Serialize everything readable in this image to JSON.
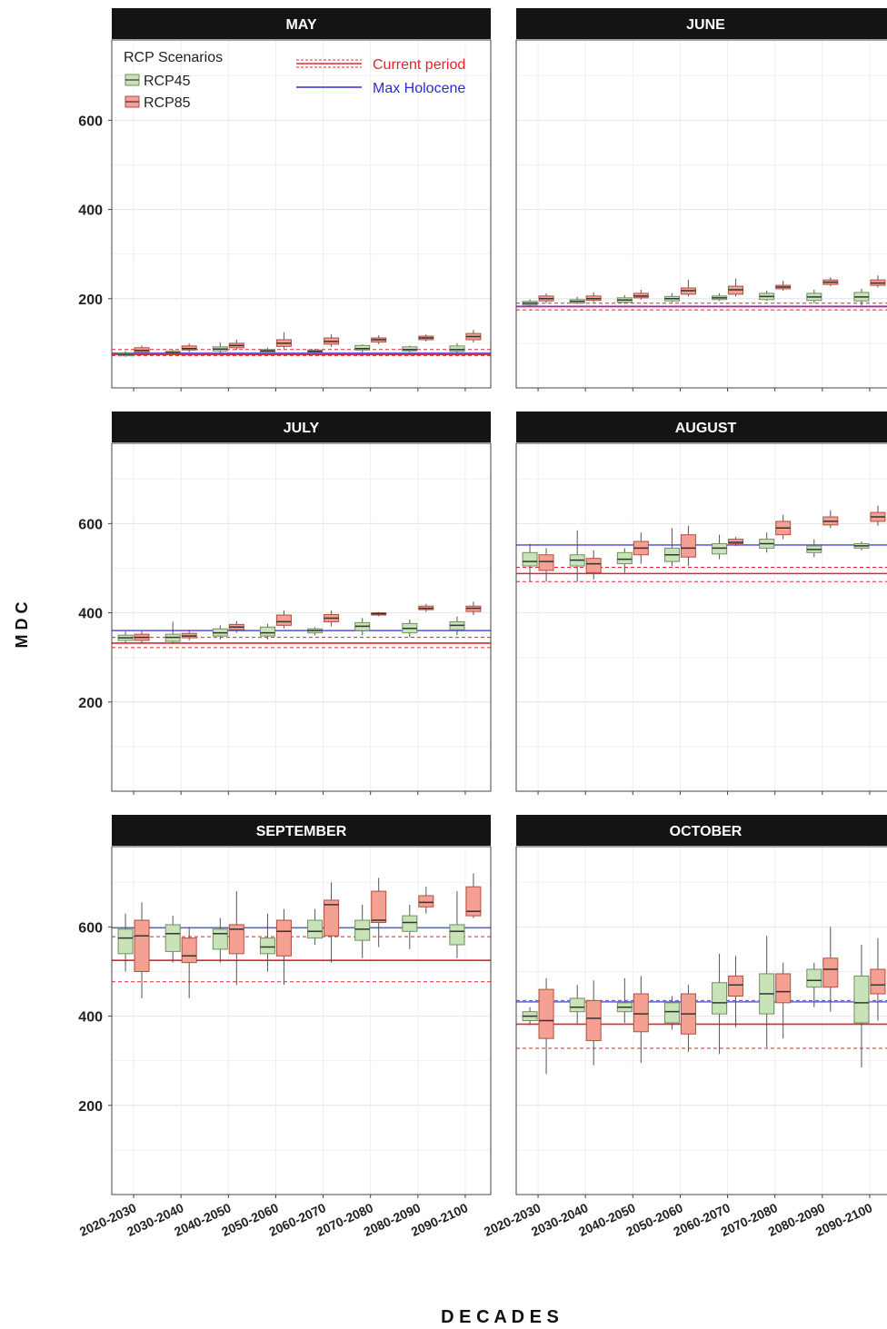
{
  "chart_data": {
    "type": "box",
    "ylabel": "M D C",
    "xlabel": "D E C A D E S",
    "ylim": [
      0,
      780
    ],
    "yticks": [
      200,
      400,
      600
    ],
    "categories": [
      "2020-2030",
      "2030-2040",
      "2040-2050",
      "2050-2060",
      "2060-2070",
      "2070-2080",
      "2080-2090",
      "2090-2100"
    ],
    "legend": {
      "title": "RCP Scenarios",
      "scenarios": [
        {
          "name": "RCP45",
          "color": "#c9e3b8",
          "stroke": "#6f8f60"
        },
        {
          "name": "RCP85",
          "color": "#f4a093",
          "stroke": "#b05040"
        }
      ],
      "lines": [
        {
          "name": "Current period",
          "color": "#e8232b"
        },
        {
          "name": "Max Holocene",
          "color": "#2b2bd6"
        }
      ]
    },
    "panels": [
      {
        "title": "MAY",
        "current_period": {
          "mean": 75,
          "lower": 72,
          "upper": 86
        },
        "max_holocene": 78,
        "rcp45": [
          [
            70,
            72,
            75,
            78,
            82
          ],
          [
            74,
            77,
            79,
            82,
            86
          ],
          [
            78,
            83,
            87,
            92,
            102
          ],
          [
            78,
            80,
            83,
            86,
            90
          ],
          [
            78,
            80,
            82,
            85,
            88
          ],
          [
            80,
            85,
            88,
            95,
            98
          ],
          [
            80,
            83,
            86,
            92,
            95
          ],
          [
            78,
            82,
            86,
            94,
            100
          ]
        ],
        "rcp85": [
          [
            76,
            80,
            84,
            90,
            95
          ],
          [
            80,
            85,
            88,
            94,
            100
          ],
          [
            85,
            90,
            95,
            100,
            108
          ],
          [
            88,
            93,
            100,
            108,
            125
          ],
          [
            92,
            98,
            104,
            112,
            120
          ],
          [
            98,
            103,
            108,
            112,
            118
          ],
          [
            104,
            108,
            112,
            116,
            120
          ],
          [
            102,
            108,
            115,
            122,
            130
          ]
        ]
      },
      {
        "title": "JUNE",
        "current_period": {
          "mean": 182,
          "lower": 175,
          "upper": 190
        },
        "max_holocene": 183,
        "rcp45": [
          [
            183,
            186,
            190,
            194,
            198
          ],
          [
            188,
            190,
            194,
            198,
            204
          ],
          [
            188,
            192,
            197,
            202,
            208
          ],
          [
            192,
            195,
            200,
            205,
            212
          ],
          [
            195,
            198,
            202,
            206,
            212
          ],
          [
            195,
            198,
            205,
            212,
            218
          ],
          [
            190,
            196,
            204,
            212,
            220
          ],
          [
            185,
            195,
            204,
            214,
            222
          ]
        ],
        "rcp85": [
          [
            190,
            195,
            200,
            206,
            212
          ],
          [
            192,
            196,
            200,
            206,
            214
          ],
          [
            198,
            202,
            206,
            212,
            220
          ],
          [
            205,
            210,
            218,
            224,
            242
          ],
          [
            205,
            210,
            220,
            228,
            245
          ],
          [
            218,
            222,
            226,
            230,
            240
          ],
          [
            228,
            232,
            237,
            242,
            248
          ],
          [
            225,
            230,
            235,
            242,
            252
          ]
        ]
      },
      {
        "title": "JULY",
        "current_period": {
          "mean": 332,
          "lower": 322,
          "upper": 345
        },
        "max_holocene": 360,
        "rcp45": [
          [
            332,
            338,
            344,
            350,
            358
          ],
          [
            330,
            336,
            345,
            352,
            380
          ],
          [
            340,
            348,
            355,
            364,
            372
          ],
          [
            340,
            348,
            355,
            368,
            375
          ],
          [
            350,
            355,
            360,
            364,
            368
          ],
          [
            350,
            360,
            370,
            378,
            388
          ],
          [
            345,
            355,
            365,
            376,
            385
          ],
          [
            350,
            362,
            372,
            380,
            392
          ]
        ],
        "rcp85": [
          [
            330,
            338,
            345,
            352,
            360
          ],
          [
            338,
            344,
            348,
            354,
            362
          ],
          [
            355,
            362,
            368,
            374,
            382
          ],
          [
            365,
            372,
            380,
            395,
            405
          ],
          [
            370,
            380,
            388,
            396,
            405
          ],
          [
            392,
            395,
            398,
            400,
            402
          ],
          [
            402,
            407,
            410,
            415,
            420
          ],
          [
            395,
            403,
            410,
            415,
            425
          ]
        ]
      },
      {
        "title": "AUGUST",
        "current_period": {
          "mean": 488,
          "lower": 470,
          "upper": 502
        },
        "max_holocene": 552,
        "rcp45": [
          [
            470,
            505,
            515,
            535,
            555
          ],
          [
            470,
            505,
            518,
            530,
            585
          ],
          [
            490,
            510,
            520,
            535,
            545
          ],
          [
            505,
            515,
            530,
            545,
            590
          ],
          [
            520,
            532,
            545,
            555,
            575
          ],
          [
            535,
            545,
            555,
            565,
            580
          ],
          [
            525,
            535,
            542,
            550,
            565
          ],
          [
            540,
            545,
            550,
            555,
            560
          ]
        ],
        "rcp85": [
          [
            470,
            495,
            515,
            530,
            545
          ],
          [
            475,
            490,
            510,
            522,
            540
          ],
          [
            510,
            530,
            545,
            560,
            580
          ],
          [
            505,
            525,
            545,
            575,
            595
          ],
          [
            550,
            555,
            558,
            565,
            570
          ],
          [
            565,
            575,
            590,
            605,
            620
          ],
          [
            590,
            597,
            605,
            615,
            630
          ],
          [
            595,
            605,
            615,
            625,
            640
          ]
        ]
      },
      {
        "title": "SEPTEMBER",
        "current_period": {
          "mean": 525,
          "lower": 477,
          "upper": 578
        },
        "max_holocene": 598,
        "rcp45": [
          [
            500,
            540,
            575,
            595,
            630
          ],
          [
            520,
            545,
            585,
            605,
            625
          ],
          [
            520,
            550,
            585,
            595,
            620
          ],
          [
            500,
            540,
            555,
            575,
            630
          ],
          [
            560,
            575,
            590,
            615,
            640
          ],
          [
            530,
            570,
            595,
            615,
            650
          ],
          [
            550,
            590,
            610,
            625,
            650
          ],
          [
            530,
            560,
            590,
            605,
            680
          ]
        ],
        "rcp85": [
          [
            440,
            500,
            580,
            615,
            655
          ],
          [
            440,
            520,
            535,
            575,
            600
          ],
          [
            470,
            540,
            595,
            605,
            680
          ],
          [
            470,
            535,
            590,
            615,
            640
          ],
          [
            520,
            580,
            650,
            660,
            700
          ],
          [
            555,
            610,
            615,
            680,
            710
          ],
          [
            630,
            645,
            655,
            670,
            690
          ],
          [
            620,
            625,
            635,
            690,
            720
          ]
        ]
      },
      {
        "title": "OCTOBER",
        "current_period": {
          "mean": 382,
          "lower": 328,
          "upper": 435
        },
        "max_holocene": 432,
        "rcp45": [
          [
            380,
            390,
            400,
            410,
            420
          ],
          [
            380,
            410,
            420,
            440,
            470
          ],
          [
            385,
            410,
            420,
            430,
            485
          ],
          [
            370,
            385,
            410,
            430,
            445
          ],
          [
            315,
            405,
            430,
            475,
            540
          ],
          [
            330,
            405,
            450,
            495,
            580
          ],
          [
            420,
            465,
            480,
            505,
            520
          ],
          [
            285,
            385,
            430,
            490,
            560
          ]
        ],
        "rcp85": [
          [
            270,
            350,
            390,
            460,
            485
          ],
          [
            290,
            345,
            395,
            435,
            480
          ],
          [
            295,
            365,
            405,
            450,
            490
          ],
          [
            320,
            360,
            405,
            450,
            470
          ],
          [
            375,
            445,
            470,
            490,
            535
          ],
          [
            350,
            430,
            455,
            495,
            520
          ],
          [
            410,
            465,
            505,
            530,
            600
          ],
          [
            390,
            450,
            470,
            505,
            575
          ]
        ]
      }
    ]
  }
}
